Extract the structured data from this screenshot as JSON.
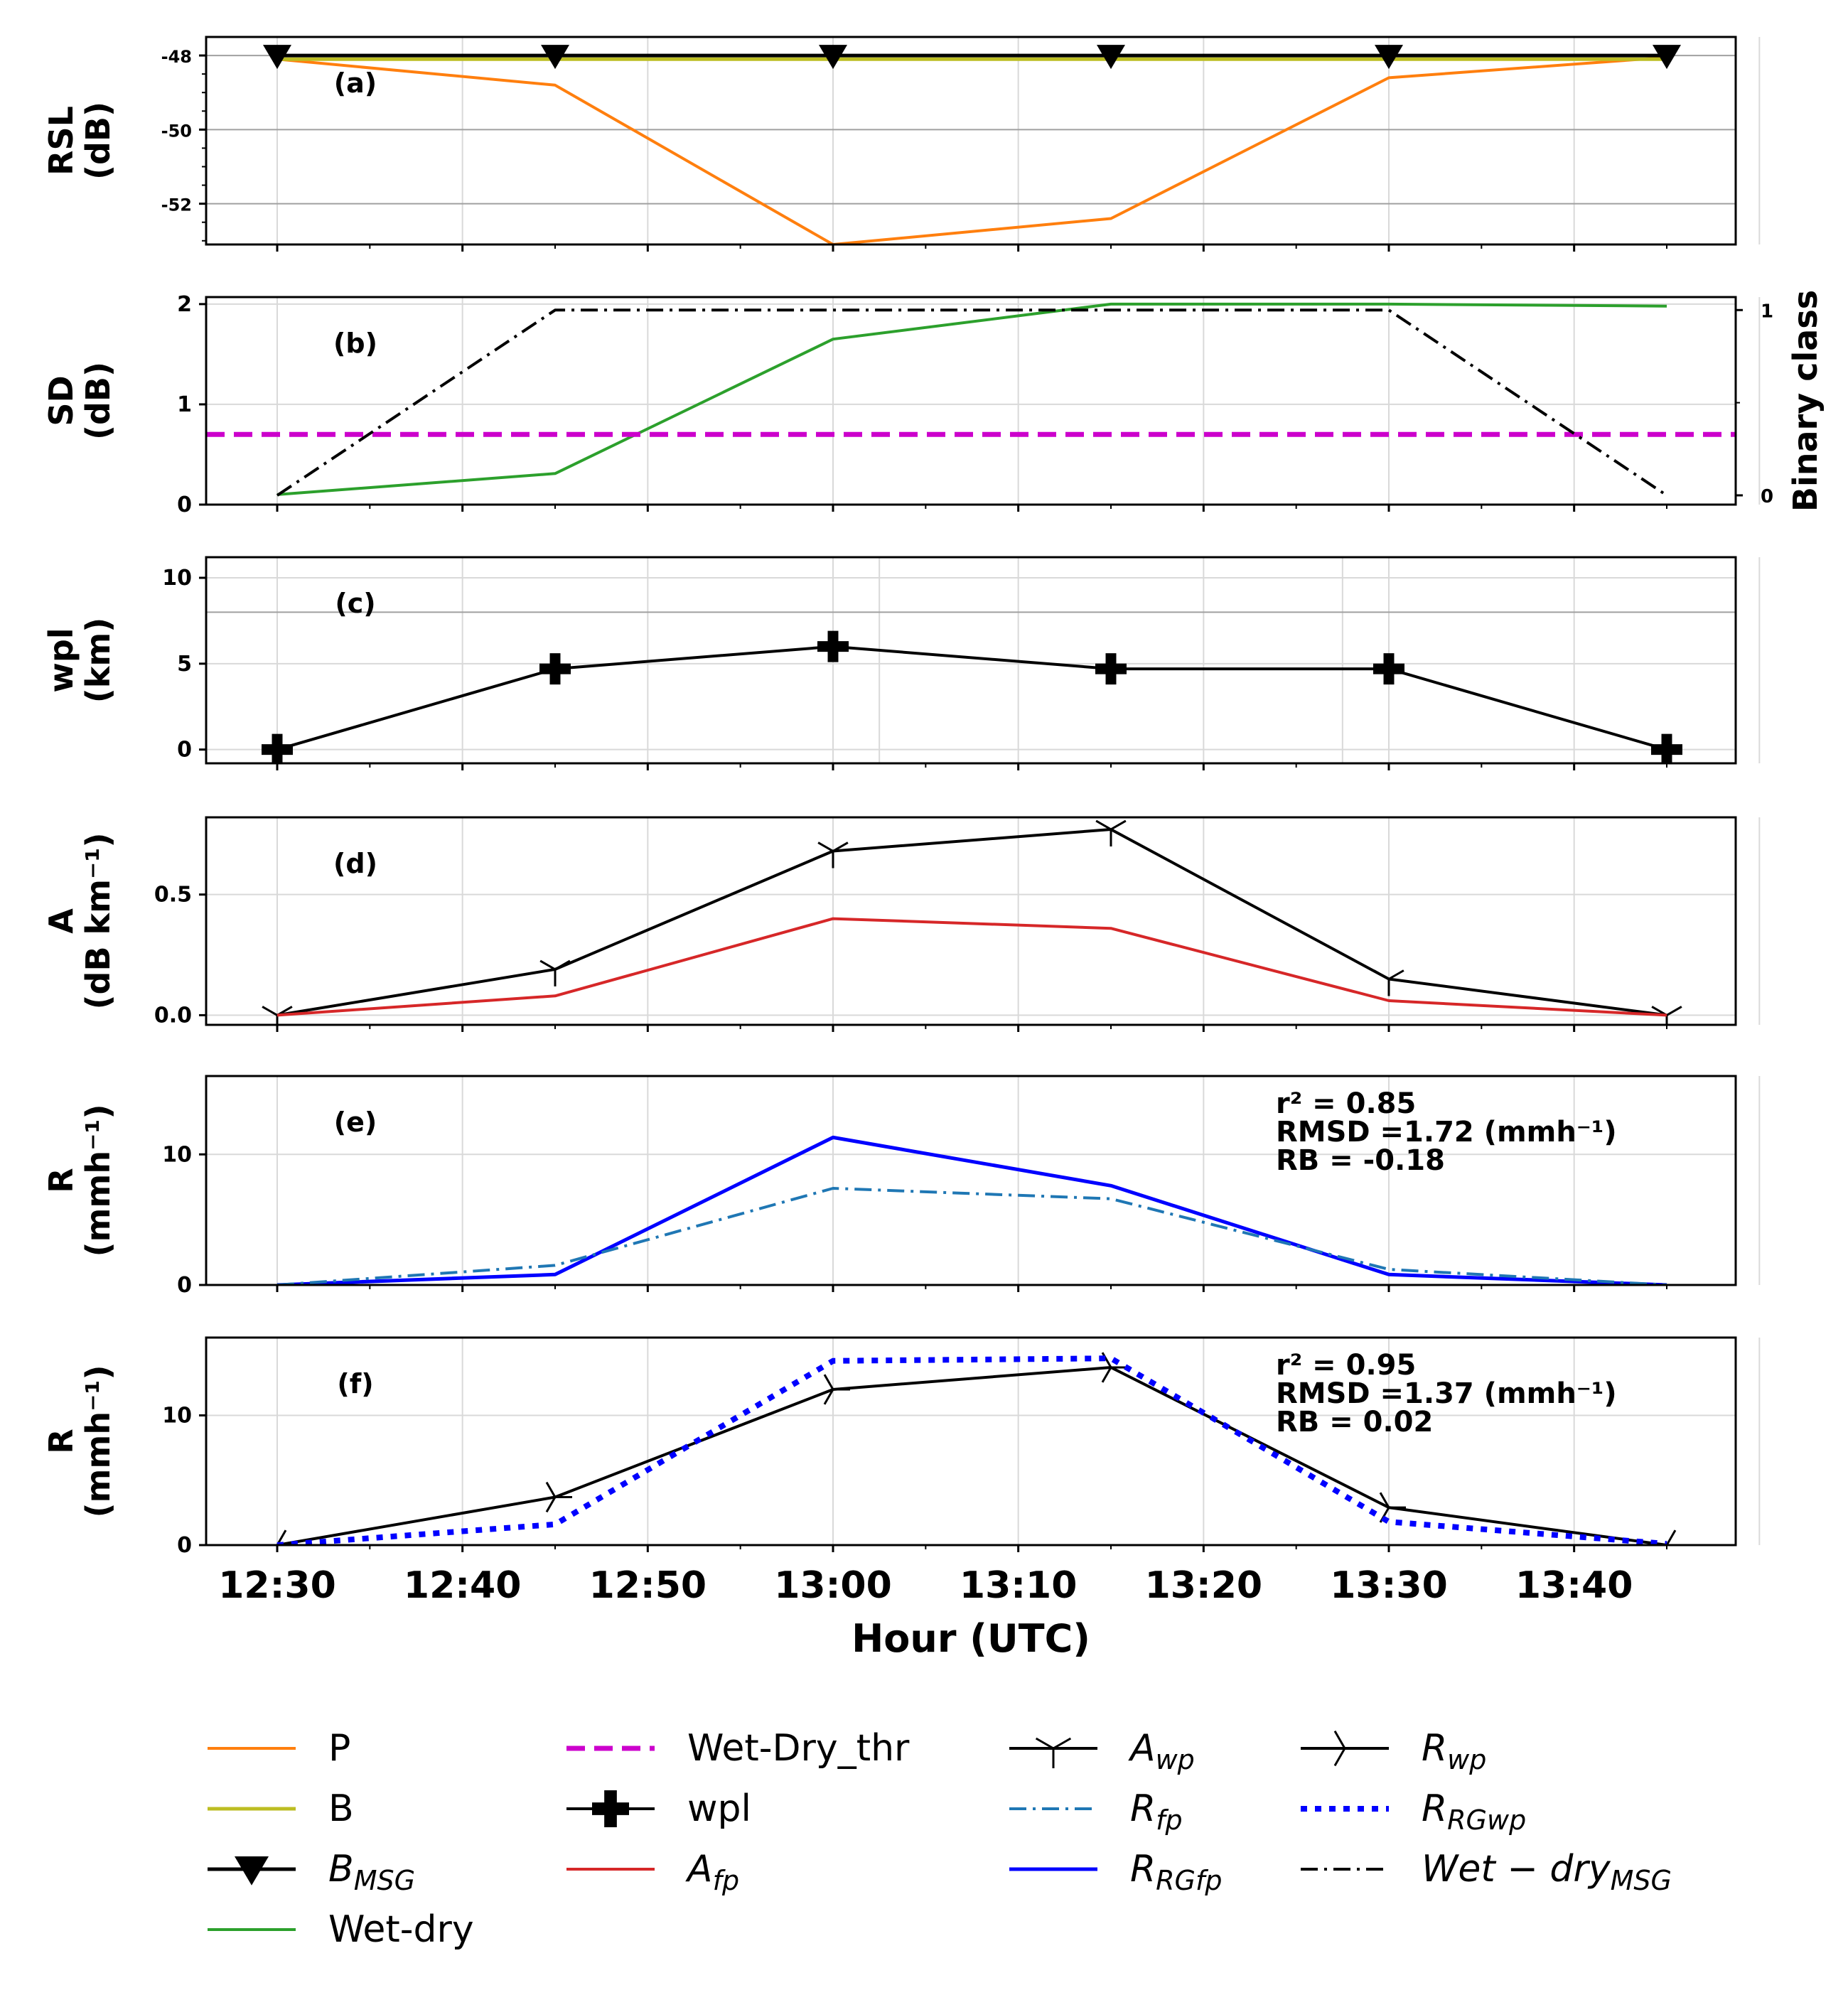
{
  "chart_data": [
    {
      "panel": "(a)",
      "type": "line",
      "ylabel": [
        "RSL",
        "(dB)"
      ],
      "ylim": [
        -53.1,
        -47.5
      ],
      "yticks": [
        -48,
        -50,
        -52
      ],
      "ytick_labels": [
        "-48",
        "-50",
        "-52"
      ],
      "x": [
        "12:30",
        "12:45",
        "13:00",
        "13:15",
        "13:30",
        "13:45"
      ],
      "series": [
        {
          "name": "P",
          "values": [
            -48.1,
            -48.8,
            -53.1,
            -52.4,
            -48.6,
            -48.05
          ]
        },
        {
          "name": "B",
          "values": [
            -48.1,
            -48.1,
            -48.1,
            -48.1,
            -48.1,
            -48.1
          ]
        },
        {
          "name": "B_MSG",
          "values": [
            -48.0,
            -48.0,
            -48.0,
            -48.0,
            -48.0,
            -48.0
          ]
        }
      ]
    },
    {
      "panel": "(b)",
      "type": "line",
      "ylabel": [
        "SD",
        "(dB)"
      ],
      "ylim": [
        0,
        2.07
      ],
      "yticks": [
        0,
        1,
        2
      ],
      "ytick_labels": [
        "0",
        "1",
        "2"
      ],
      "y2label": "Binary class",
      "y2lim": [
        -0.05,
        1.07
      ],
      "y2ticks": [
        0,
        1
      ],
      "y2tick_labels": [
        "0",
        "1"
      ],
      "x": [
        "12:30",
        "12:45",
        "13:00",
        "13:15",
        "13:30",
        "13:45"
      ],
      "series": [
        {
          "name": "Wet-dry",
          "values": [
            0.1,
            0.31,
            1.65,
            2.0,
            2.0,
            1.98
          ]
        },
        {
          "name": "Wet-Dry_thr",
          "values": [
            0.7,
            0.7,
            0.7,
            0.7,
            0.7,
            0.7
          ]
        },
        {
          "name": "Wet-dry_MSG",
          "axis": "right",
          "values": [
            0,
            1,
            1,
            1,
            1,
            0
          ]
        }
      ]
    },
    {
      "panel": "(c)",
      "type": "line",
      "ylabel": [
        "wpl",
        "(km)"
      ],
      "ylim": [
        -0.8,
        11.2
      ],
      "yticks": [
        0,
        5,
        10
      ],
      "ytick_labels": [
        "0",
        "5",
        "10"
      ],
      "x": [
        "12:30",
        "12:45",
        "13:00",
        "13:15",
        "13:30",
        "13:45"
      ],
      "series": [
        {
          "name": "wpl",
          "values": [
            0,
            4.7,
            6.0,
            4.7,
            4.7,
            0
          ]
        }
      ]
    },
    {
      "panel": "(d)",
      "type": "line",
      "ylabel": [
        "A",
        "(dB km⁻¹)"
      ],
      "ylim": [
        -0.04,
        0.82
      ],
      "yticks": [
        0.0,
        0.5
      ],
      "ytick_labels": [
        "0.0",
        "0.5"
      ],
      "x": [
        "12:30",
        "12:45",
        "13:00",
        "13:15",
        "13:30",
        "13:45"
      ],
      "series": [
        {
          "name": "A_wp",
          "values": [
            0,
            0.19,
            0.68,
            0.77,
            0.15,
            0
          ]
        },
        {
          "name": "A_fp",
          "values": [
            0,
            0.08,
            0.4,
            0.36,
            0.06,
            0
          ]
        }
      ]
    },
    {
      "panel": "(e)",
      "type": "line",
      "ylabel": [
        "R",
        "(mmh⁻¹)"
      ],
      "ylim": [
        0,
        16
      ],
      "yticks": [
        0,
        10
      ],
      "ytick_labels": [
        "0",
        "10"
      ],
      "x": [
        "12:30",
        "12:45",
        "13:00",
        "13:15",
        "13:30",
        "13:45"
      ],
      "series": [
        {
          "name": "R_RGfp",
          "values": [
            0,
            0.8,
            11.3,
            7.6,
            0.8,
            0
          ]
        },
        {
          "name": "R_fp",
          "values": [
            0,
            1.5,
            7.4,
            6.6,
            1.2,
            0
          ]
        }
      ],
      "stats": {
        "r2": "r² = 0.85",
        "rmsd": "RMSD =1.72 (mmh⁻¹)",
        "rb": "RB = -0.18"
      }
    },
    {
      "panel": "(f)",
      "type": "line",
      "ylabel": [
        "R",
        "(mmh⁻¹)"
      ],
      "ylim": [
        0,
        16
      ],
      "yticks": [
        0,
        10
      ],
      "ytick_labels": [
        "0",
        "10"
      ],
      "x": [
        "12:30",
        "12:45",
        "13:00",
        "13:15",
        "13:30",
        "13:45"
      ],
      "series": [
        {
          "name": "R_wp",
          "values": [
            0,
            3.7,
            12.0,
            13.7,
            2.9,
            0
          ]
        },
        {
          "name": "R_RGwp",
          "values": [
            0,
            1.6,
            14.2,
            14.4,
            1.8,
            0.1
          ]
        }
      ],
      "stats": {
        "r2": "r² = 0.95",
        "rmsd": "RMSD =1.37 (mmh⁻¹)",
        "rb": "RB = 0.02"
      }
    }
  ],
  "xaxis": {
    "label": "Hour (UTC)",
    "tick_labels": [
      "12:30",
      "12:40",
      "12:50",
      "13:00",
      "13:10",
      "13:20",
      "13:30",
      "13:40"
    ]
  },
  "legend": [
    {
      "key": "P",
      "label": "P"
    },
    {
      "key": "B",
      "label": "B"
    },
    {
      "key": "B_MSG",
      "label": "B",
      "sub": "MSG"
    },
    {
      "key": "Wet-dry",
      "label": "Wet-dry"
    },
    {
      "key": "Wet-Dry_thr",
      "label": "Wet-Dry_thr"
    },
    {
      "key": "wpl",
      "label": "wpl"
    },
    {
      "key": "A_fp",
      "label": "A",
      "sub": "fp"
    },
    {
      "key": "A_wp",
      "label": "A",
      "sub": "wp"
    },
    {
      "key": "R_fp",
      "label": "R",
      "sub": "fp"
    },
    {
      "key": "R_RGfp",
      "label": "R",
      "sub": "RGfp"
    },
    {
      "key": "R_wp",
      "label": "R",
      "sub": "wp"
    },
    {
      "key": "R_RGwp",
      "label": "R",
      "sub": "RGwp"
    },
    {
      "key": "Wet-dry_MSG",
      "label": "Wet − dry",
      "sub": "MSG"
    }
  ],
  "colors": {
    "P": "#ff7f0e",
    "B": "#bcbd22",
    "B_MSG": "#000000",
    "Wet-dry": "#2ca02c",
    "Wet-Dry_thr": "#cc00cc",
    "wpl": "#000000",
    "A_fp": "#d62728",
    "A_wp": "#000000",
    "R_fp": "#1f77b4",
    "R_RGfp": "#0000ff",
    "R_wp": "#000000",
    "R_RGwp": "#0000ff",
    "Wet-dry_MSG": "#000000"
  }
}
